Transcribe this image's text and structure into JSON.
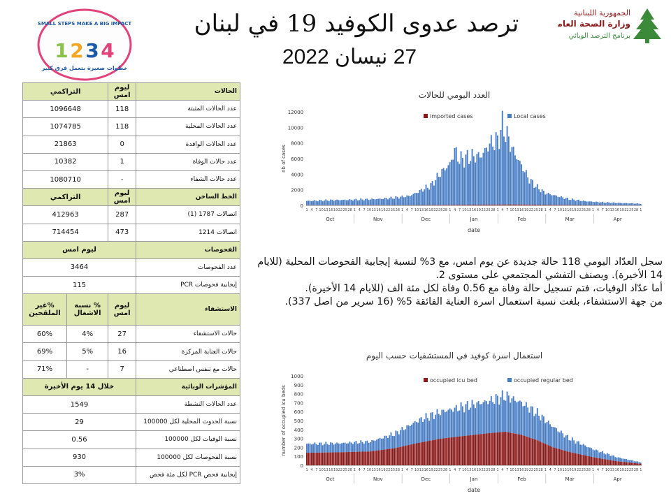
{
  "header": {
    "title": "ترصد عدوى الكوفيد 19 في لبنان",
    "date": "27 نيسان 2022",
    "ministry_line1": "الجمهورية اللبنانية",
    "ministry_line2": "وزارة الصحة العامة",
    "ministry_line3": "برنامج الترصد الوبائي",
    "campaign_en": "SMALL STEPS MAKE A BIG IMPACT",
    "campaign_ar": "خطوات صغيرة بتعمل فرق كبير"
  },
  "table": {
    "cases": {
      "headers": [
        "الحالات",
        "ليوم امس",
        "التراكمي"
      ],
      "rows": [
        {
          "label": "عدد الحالات المثبتة",
          "yesterday": "118",
          "total": "1096648"
        },
        {
          "label": "عدد الحالات المحلية",
          "yesterday": "118",
          "total": "1074785"
        },
        {
          "label": "عدد الحالات الوافدة",
          "yesterday": "0",
          "total": "21863"
        },
        {
          "label": "عدد حالات الوفاة",
          "yesterday": "1",
          "total": "10382"
        },
        {
          "label": "عدد حالات الشفاء",
          "yesterday": "-",
          "total": "1080710"
        }
      ]
    },
    "hotline": {
      "headers": [
        "الخط الساخن",
        "ليوم امس",
        "التراكمي"
      ],
      "rows": [
        {
          "label": "اتصالات 1787 (1)",
          "yesterday": "287",
          "total": "412963"
        },
        {
          "label": "اتصالات 1214",
          "yesterday": "473",
          "total": "714454"
        }
      ]
    },
    "tests": {
      "headers": [
        "الفحوصات",
        "ليوم امس"
      ],
      "rows": [
        {
          "label": "عدد الفحوصات",
          "value": "3464"
        },
        {
          "label": "إيجابية فحوصات PCR",
          "value": "115"
        }
      ]
    },
    "hospital": {
      "headers": [
        "الاستشفاء",
        "ليوم امس",
        "% نسبة الاشغال",
        "%غير الملقحين"
      ],
      "rows": [
        {
          "label": "حالات الاستشفاء",
          "yesterday": "27",
          "occupancy": "4%",
          "unvaccinated": "60%"
        },
        {
          "label": "حالات العناية المركزة",
          "yesterday": "16",
          "occupancy": "5%",
          "unvaccinated": "69%"
        },
        {
          "label": "حالات مع تنفس اصطناعي",
          "yesterday": "7",
          "occupancy": "-",
          "unvaccinated": "71%"
        }
      ]
    },
    "indicators": {
      "headers": [
        "المؤشرات الوبائية",
        "خلال 14 يوم الأخيرة"
      ],
      "rows": [
        {
          "label": "عدد الحالات النشطة",
          "value": "1549"
        },
        {
          "label": "نسبة الحدوث المحلية لكل 100000",
          "value": "29"
        },
        {
          "label": "نسبة الوفيات لكل 100000",
          "value": "0.56"
        },
        {
          "label": "نسبة الفحوصات لكل 100000",
          "value": "930"
        },
        {
          "label": "إيجابية فحص PCR لكل مئة فحص",
          "value": "3%"
        }
      ]
    }
  },
  "summary": {
    "line1": "سجل العدّاد اليومي 118 حالة جديدة عن يوم امس، مع 3% لنسبة إيجابية الفحوصات المحلية (للايام",
    "line2": "14 الأخيرة). ويصنف التفشي المجتمعي على مستوى 2.",
    "line3": "أما عدّاد الوفيات، فتم تسجيل حالة وفاة مع 0.56 وفاة لكل مئة الف (للايام 14 الأخيرة).",
    "line4": "من جهة الاستشفاء، بلغت نسبة استعمال اسرة العناية الفائقة 5% (16 سرير من اصل 337)."
  },
  "chart_data": [
    {
      "type": "bar",
      "title": "العدد اليومي للحالات",
      "xlabel": "date",
      "ylabel": "nb of cases",
      "ylim": [
        0,
        12000
      ],
      "yticks": [
        0,
        2000,
        4000,
        6000,
        8000,
        10000,
        12000
      ],
      "month_labels": [
        "Oct",
        "Nov",
        "Dec",
        "Jan",
        "Feb",
        "Mar",
        "Apr"
      ],
      "legend_placement": "top",
      "stacked": true,
      "colors": {
        "imported": "#8b1a1a",
        "local": "#4a7ec4"
      },
      "series": [
        {
          "name": "imported cases",
          "anchors": [
            [
              0,
              20
            ],
            [
              60,
              30
            ],
            [
              100,
              80
            ],
            [
              130,
              120
            ],
            [
              150,
              80
            ],
            [
              180,
              30
            ],
            [
              210,
              10
            ]
          ]
        },
        {
          "name": "Local cases",
          "anchors": [
            [
              0,
              550
            ],
            [
              15,
              650
            ],
            [
              30,
              700
            ],
            [
              45,
              800
            ],
            [
              55,
              950
            ],
            [
              65,
              1200
            ],
            [
              72,
              1900
            ],
            [
              78,
              2500
            ],
            [
              85,
              4300
            ],
            [
              90,
              5200
            ],
            [
              93,
              7000
            ],
            [
              96,
              5800
            ],
            [
              100,
              6000
            ],
            [
              105,
              6200
            ],
            [
              110,
              6300
            ],
            [
              115,
              7800
            ],
            [
              120,
              8200
            ],
            [
              123,
              10100
            ],
            [
              126,
              8800
            ],
            [
              130,
              6800
            ],
            [
              135,
              5000
            ],
            [
              140,
              3200
            ],
            [
              145,
              2200
            ],
            [
              150,
              1500
            ],
            [
              158,
              1100
            ],
            [
              165,
              750
            ],
            [
              175,
              500
            ],
            [
              185,
              380
            ],
            [
              195,
              300
            ],
            [
              205,
              250
            ],
            [
              210,
              200
            ]
          ]
        }
      ]
    },
    {
      "type": "bar",
      "title": "استعمال اسرة كوفيد في المستشفيات حسب اليوم",
      "xlabel": "date",
      "ylabel": "number of occupied icu beds",
      "ylim": [
        0,
        1000
      ],
      "yticks": [
        0,
        100,
        200,
        300,
        400,
        500,
        600,
        700,
        800,
        900,
        1000
      ],
      "month_labels": [
        "Oct",
        "Nov",
        "Dec",
        "Jan",
        "Feb",
        "Mar",
        "Apr"
      ],
      "legend_placement": "top",
      "stacked": true,
      "colors": {
        "icu": "#8b1a1a",
        "regular": "#4a7ec4"
      },
      "series": [
        {
          "name": "occupied icu bed",
          "anchors": [
            [
              0,
              140
            ],
            [
              20,
              145
            ],
            [
              40,
              155
            ],
            [
              55,
              190
            ],
            [
              70,
              250
            ],
            [
              85,
              300
            ],
            [
              100,
              330
            ],
            [
              115,
              360
            ],
            [
              125,
              375
            ],
            [
              135,
              340
            ],
            [
              145,
              280
            ],
            [
              155,
              200
            ],
            [
              165,
              150
            ],
            [
              180,
              90
            ],
            [
              195,
              45
            ],
            [
              210,
              18
            ]
          ]
        },
        {
          "name": "occupied regular bed",
          "anchors": [
            [
              0,
              100
            ],
            [
              20,
              100
            ],
            [
              40,
              110
            ],
            [
              55,
              160
            ],
            [
              70,
              250
            ],
            [
              85,
              300
            ],
            [
              100,
              330
            ],
            [
              115,
              360
            ],
            [
              125,
              400
            ],
            [
              135,
              360
            ],
            [
              145,
              300
            ],
            [
              155,
              230
            ],
            [
              165,
              150
            ],
            [
              180,
              90
            ],
            [
              195,
              45
            ],
            [
              210,
              15
            ]
          ]
        }
      ]
    }
  ]
}
